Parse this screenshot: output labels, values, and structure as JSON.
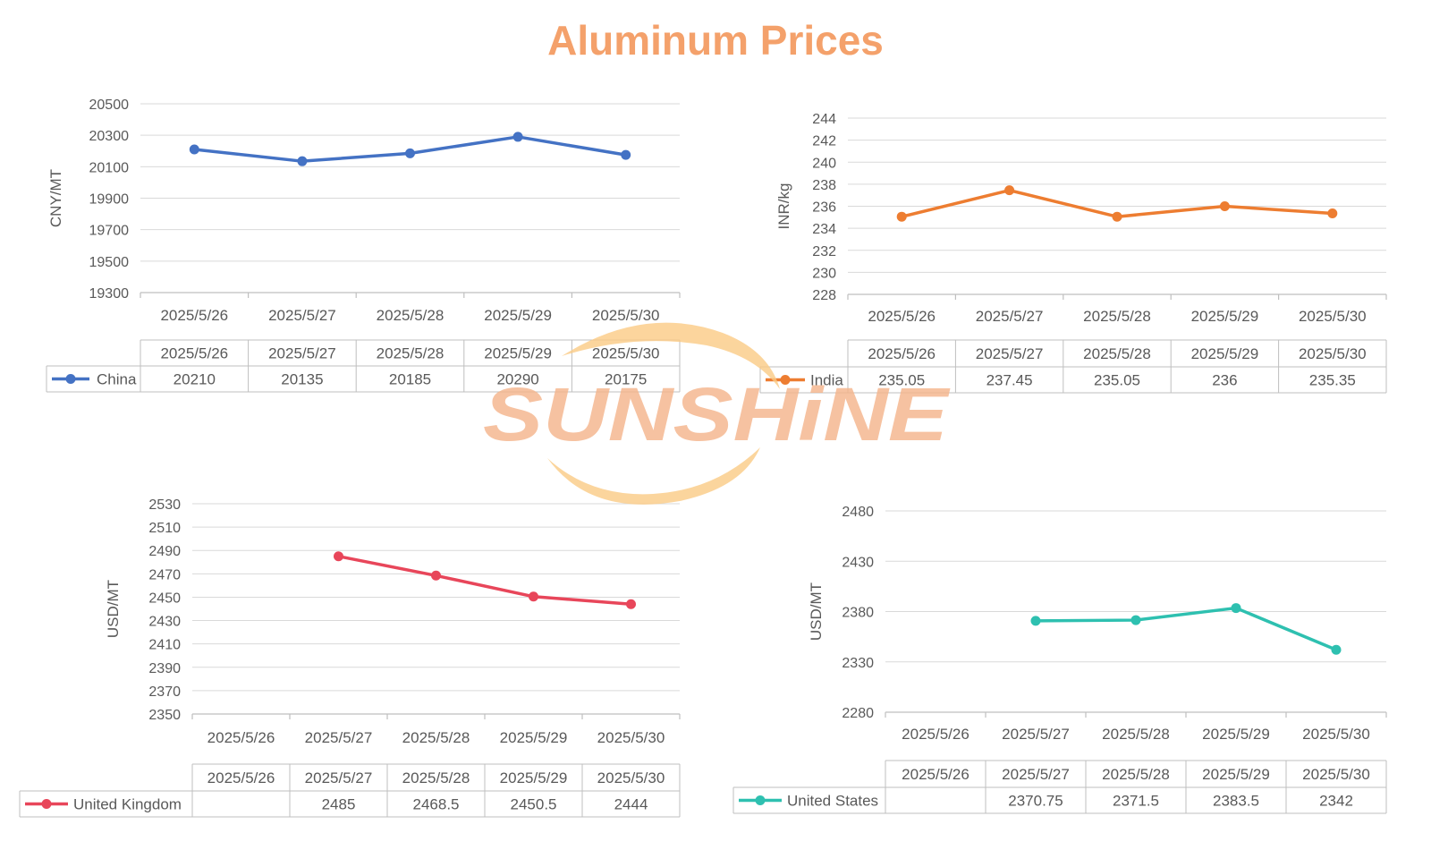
{
  "title": "Aluminum Prices",
  "watermark": {
    "text": "SUNSHiNE"
  },
  "colors": {
    "title": "#F4A16B",
    "china": "#4472C4",
    "india": "#ED7D31",
    "uk": "#E8465A",
    "us": "#2EC0B0",
    "watermark_text": "#F5B48A",
    "watermark_swoosh": "#FBCB85",
    "grid": "#D9D9D9",
    "text": "#595959"
  },
  "chart_data": [
    {
      "type": "line",
      "title": "",
      "xlabel": "",
      "ylabel": "CNY/MT",
      "categories": [
        "2025/5/26",
        "2025/5/27",
        "2025/5/28",
        "2025/5/29",
        "2025/5/30"
      ],
      "series": [
        {
          "name": "China",
          "values": [
            20210,
            20135,
            20185,
            20290,
            20175
          ],
          "labels": [
            "20210",
            "20135",
            "20185",
            "20290",
            "20175"
          ]
        }
      ],
      "ylim": [
        19300,
        20500
      ],
      "yticks": [
        "19300",
        "19500",
        "19700",
        "19900",
        "20100",
        "20300",
        "20500"
      ],
      "grid": true,
      "data_table": true
    },
    {
      "type": "line",
      "title": "",
      "xlabel": "",
      "ylabel": "INR/kg",
      "categories": [
        "2025/5/26",
        "2025/5/27",
        "2025/5/28",
        "2025/5/29",
        "2025/5/30"
      ],
      "series": [
        {
          "name": "India",
          "values": [
            235.05,
            237.45,
            235.05,
            236,
            235.35
          ],
          "labels": [
            "235.05",
            "237.45",
            "235.05",
            "236",
            "235.35"
          ]
        }
      ],
      "ylim": [
        228,
        244
      ],
      "yticks": [
        "228",
        "230",
        "232",
        "234",
        "236",
        "238",
        "240",
        "242",
        "244"
      ],
      "grid": true,
      "data_table": true
    },
    {
      "type": "line",
      "title": "",
      "xlabel": "",
      "ylabel": "USD/MT",
      "categories": [
        "2025/5/26",
        "2025/5/27",
        "2025/5/28",
        "2025/5/29",
        "2025/5/30"
      ],
      "series": [
        {
          "name": "United Kingdom",
          "values": [
            null,
            2485,
            2468.5,
            2450.5,
            2444
          ],
          "labels": [
            "",
            "2485",
            "2468.5",
            "2450.5",
            "2444"
          ]
        }
      ],
      "ylim": [
        2350,
        2530
      ],
      "yticks": [
        "2350",
        "2370",
        "2390",
        "2410",
        "2430",
        "2450",
        "2470",
        "2490",
        "2510",
        "2530"
      ],
      "grid": true,
      "data_table": true
    },
    {
      "type": "line",
      "title": "",
      "xlabel": "",
      "ylabel": "USD/MT",
      "categories": [
        "2025/5/26",
        "2025/5/27",
        "2025/5/28",
        "2025/5/29",
        "2025/5/30"
      ],
      "series": [
        {
          "name": "United States",
          "values": [
            null,
            2370.75,
            2371.5,
            2383.5,
            2342
          ],
          "labels": [
            "",
            "2370.75",
            "2371.5",
            "2383.5",
            "2342"
          ]
        }
      ],
      "ylim": [
        2280,
        2480
      ],
      "yticks": [
        "2280",
        "2330",
        "2380",
        "2430",
        "2480"
      ],
      "grid": true,
      "data_table": true
    }
  ]
}
